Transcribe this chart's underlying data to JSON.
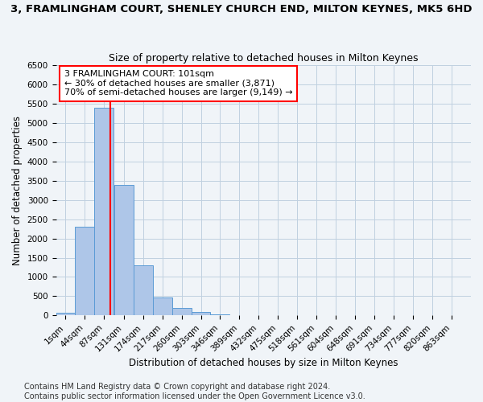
{
  "title": "3, FRAMLINGHAM COURT, SHENLEY CHURCH END, MILTON KEYNES, MK5 6HD",
  "subtitle": "Size of property relative to detached houses in Milton Keynes",
  "xlabel": "Distribution of detached houses by size in Milton Keynes",
  "ylabel": "Number of detached properties",
  "bin_labels": [
    "1sqm",
    "44sqm",
    "87sqm",
    "131sqm",
    "174sqm",
    "217sqm",
    "260sqm",
    "303sqm",
    "346sqm",
    "389sqm",
    "432sqm",
    "475sqm",
    "518sqm",
    "561sqm",
    "604sqm",
    "648sqm",
    "691sqm",
    "734sqm",
    "777sqm",
    "820sqm",
    "863sqm"
  ],
  "bin_centers": [
    1,
    44,
    87,
    131,
    174,
    217,
    260,
    303,
    346,
    389,
    432,
    475,
    518,
    561,
    604,
    648,
    691,
    734,
    777,
    820,
    863
  ],
  "bar_values": [
    80,
    2300,
    5400,
    3400,
    1300,
    470,
    190,
    100,
    30,
    10,
    5,
    3,
    2,
    1,
    1,
    1,
    0,
    0,
    0,
    0,
    0
  ],
  "bar_color": "#aec6e8",
  "bar_edge_color": "#5b9bd5",
  "red_line_x": 101,
  "annotation_line1": "3 FRAMLINGHAM COURT: 101sqm",
  "annotation_line2": "← 30% of detached houses are smaller (3,871)",
  "annotation_line3": "70% of semi-detached houses are larger (9,149) →",
  "annotation_box_color": "white",
  "annotation_box_edge": "red",
  "ylim": [
    0,
    6500
  ],
  "yticks": [
    0,
    500,
    1000,
    1500,
    2000,
    2500,
    3000,
    3500,
    4000,
    4500,
    5000,
    5500,
    6000,
    6500
  ],
  "xlim_min": 1,
  "xlim_max": 906,
  "bin_width": 43,
  "footer_line1": "Contains HM Land Registry data © Crown copyright and database right 2024.",
  "footer_line2": "Contains public sector information licensed under the Open Government Licence v3.0.",
  "bg_color": "#f0f4f8",
  "grid_color": "#c0d0e0",
  "title_fontsize": 9.5,
  "subtitle_fontsize": 9,
  "axis_label_fontsize": 8.5,
  "tick_fontsize": 7.5,
  "footer_fontsize": 7,
  "annot_fontsize": 8
}
